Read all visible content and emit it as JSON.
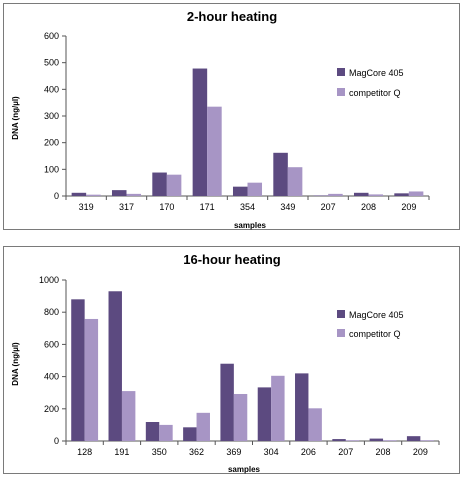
{
  "colors": {
    "series_1": "#5c4a80",
    "series_2": "#a795c5"
  },
  "chart_data": [
    {
      "type": "bar",
      "title": "2-hour heating",
      "xlabel": "samples",
      "ylabel": "DNA (ng/µl)",
      "ylim": [
        0,
        600
      ],
      "yticks": [
        0,
        100,
        200,
        300,
        400,
        500,
        600
      ],
      "grid": false,
      "legend": "right",
      "categories": [
        "319",
        "317",
        "170",
        "171",
        "354",
        "349",
        "207",
        "208",
        "209"
      ],
      "series": [
        {
          "name": "MagCore 405",
          "values": [
            12,
            22,
            88,
            478,
            35,
            162,
            2,
            12,
            10
          ]
        },
        {
          "name": "competitor Q",
          "values": [
            5,
            8,
            80,
            335,
            50,
            108,
            8,
            6,
            17
          ]
        }
      ]
    },
    {
      "type": "bar",
      "title": "16-hour heating",
      "xlabel": "samples",
      "ylabel": "DNA (ng/µl)",
      "ylim": [
        0,
        1000
      ],
      "yticks": [
        0,
        200,
        400,
        600,
        800,
        1000
      ],
      "grid": false,
      "legend": "right",
      "categories": [
        "128",
        "191",
        "350",
        "362",
        "369",
        "304",
        "206",
        "207",
        "208",
        "209"
      ],
      "series": [
        {
          "name": "MagCore 405",
          "values": [
            880,
            930,
            118,
            85,
            480,
            333,
            420,
            12,
            15,
            30
          ]
        },
        {
          "name": "competitor Q",
          "values": [
            758,
            310,
            100,
            175,
            292,
            405,
            203,
            5,
            5,
            5
          ]
        }
      ]
    }
  ]
}
